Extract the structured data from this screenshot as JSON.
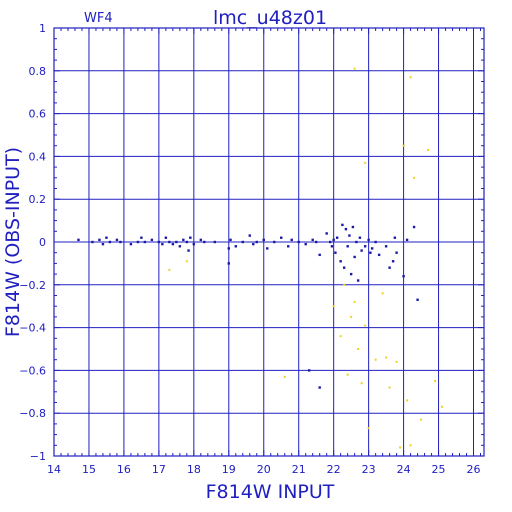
{
  "chart_data": {
    "type": "scatter",
    "corner_label": "WF4",
    "title": "lmc_u48z01",
    "xlabel": "F814W  INPUT",
    "ylabel": "F814W  (OBS-INPUT)",
    "xlim": [
      14,
      26.3
    ],
    "ylim": [
      -1,
      1
    ],
    "xticks": [
      14,
      15,
      16,
      17,
      18,
      19,
      20,
      21,
      22,
      23,
      24,
      25,
      26
    ],
    "yticks": [
      -1,
      -0.8,
      -0.6,
      -0.4,
      -0.2,
      0,
      0.2,
      0.4,
      0.6,
      0.8,
      1
    ],
    "ytick_labels": [
      "−1",
      "−0.8",
      "−0.6",
      "−0.4",
      "−0.2",
      "0",
      "0.2",
      "0.4",
      "0.6",
      "0.8",
      "1"
    ],
    "grid": true,
    "colors": {
      "axes": "#2020c0",
      "primary": "#1a1aa8",
      "secondary": "#f0d020"
    },
    "series": [
      {
        "color": "#1a1aa8",
        "x": [
          14.7,
          15.1,
          15.3,
          15.4,
          15.5,
          15.6,
          15.8,
          15.9,
          16.2,
          16.4,
          16.5,
          16.6,
          16.8,
          17.0,
          17.1,
          17.2,
          17.3,
          17.4,
          17.5,
          17.6,
          17.7,
          17.8,
          17.85,
          17.9,
          18.0,
          18.2,
          18.3,
          18.6,
          19.0,
          19.0,
          19.05,
          19.2,
          19.4,
          19.6,
          19.7,
          19.8,
          20.0,
          20.1,
          20.3,
          20.5,
          20.7,
          20.8,
          21.0,
          21.2,
          21.4,
          21.5,
          21.6,
          21.8,
          21.9,
          21.95,
          22.0,
          22.05,
          22.1,
          22.2,
          22.25,
          22.3,
          22.35,
          22.4,
          22.45,
          22.5,
          22.55,
          22.6,
          22.65,
          22.7,
          22.75,
          22.8,
          22.9,
          23.0,
          23.05,
          23.1,
          23.2,
          23.3,
          23.5,
          23.6,
          23.7,
          23.75,
          23.8,
          24.0,
          24.1,
          24.3,
          24.4,
          21.3,
          21.6
        ],
        "y": [
          0.01,
          0.0,
          0.01,
          -0.01,
          0.02,
          0.0,
          0.01,
          0.0,
          -0.01,
          0.0,
          0.02,
          0.0,
          0.01,
          0.0,
          -0.01,
          0.02,
          0.0,
          -0.01,
          0.0,
          -0.02,
          0.01,
          0.0,
          -0.04,
          0.02,
          -0.01,
          0.01,
          0.0,
          0.0,
          -0.03,
          -0.1,
          0.01,
          -0.02,
          0.0,
          0.03,
          -0.01,
          0.0,
          0.01,
          -0.03,
          0.0,
          0.02,
          -0.02,
          0.01,
          0.0,
          -0.01,
          0.01,
          0.0,
          -0.06,
          0.04,
          0.0,
          -0.02,
          0.01,
          -0.05,
          0.02,
          -0.09,
          0.08,
          -0.12,
          0.06,
          -0.02,
          0.03,
          -0.15,
          0.07,
          -0.07,
          0.0,
          -0.18,
          0.02,
          -0.04,
          -0.02,
          0.01,
          -0.05,
          -0.03,
          0.0,
          -0.06,
          -0.02,
          -0.12,
          -0.09,
          0.02,
          -0.05,
          -0.16,
          0.01,
          0.07,
          -0.27,
          -0.6,
          -0.68
        ]
      },
      {
        "color": "#f0d020",
        "x": [
          17.3,
          17.8,
          20.6,
          22.0,
          22.2,
          22.3,
          22.4,
          22.5,
          22.6,
          22.7,
          22.8,
          22.9,
          23.0,
          23.2,
          23.4,
          23.5,
          23.6,
          23.8,
          23.9,
          24.0,
          24.1,
          24.2,
          24.3,
          24.5,
          24.7,
          24.9,
          25.1,
          22.6,
          24.2,
          22.9
        ],
        "y": [
          -0.13,
          -0.09,
          -0.63,
          -0.3,
          -0.44,
          -0.2,
          -0.62,
          -0.35,
          -0.28,
          -0.5,
          -0.66,
          -0.39,
          -0.87,
          -0.55,
          -0.24,
          -0.54,
          -0.68,
          -0.56,
          -0.96,
          0.45,
          -0.74,
          -0.95,
          0.3,
          -0.83,
          0.43,
          -0.65,
          -0.77,
          0.81,
          0.77,
          0.37
        ]
      }
    ]
  }
}
